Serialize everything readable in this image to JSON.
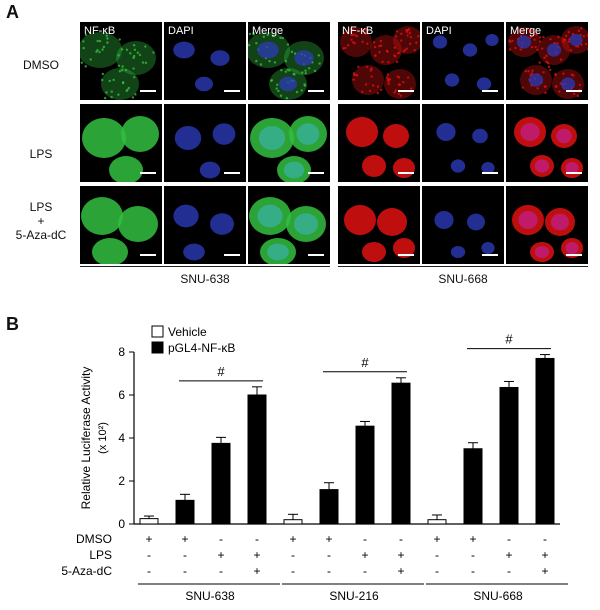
{
  "panel_a": {
    "letter": "A",
    "row_labels": [
      "DMSO",
      "LPS",
      "LPS\n+\n5-Aza-dC"
    ],
    "channel_labels": [
      "NF-κB",
      "DAPI",
      "Merge",
      "NF-κB",
      "DAPI",
      "Merge"
    ],
    "cell_lines": [
      "SNU-638",
      "SNU-668"
    ]
  },
  "panel_b": {
    "letter": "B",
    "legend": [
      {
        "label": "Vehicle",
        "color": "#ffffff"
      },
      {
        "label": "pGL4-NF-κB",
        "color": "#000000"
      }
    ],
    "ylabel_line1": "Relative Luciferase Activity",
    "ylabel_line2": "(x 10²)",
    "row_labels": [
      "DMSO",
      "LPS",
      "5-Aza-dC"
    ],
    "significance_mark": "#"
  },
  "chart_data": {
    "type": "bar",
    "ylim": [
      0,
      8
    ],
    "yticks": [
      0,
      2,
      4,
      6,
      8
    ],
    "groups": [
      {
        "name": "SNU-638",
        "values": [
          0.25,
          1.1,
          3.75,
          6.0
        ],
        "errors": [
          0.12,
          0.28,
          0.28,
          0.38
        ]
      },
      {
        "name": "SNU-216",
        "values": [
          0.2,
          1.6,
          4.55,
          6.55
        ],
        "errors": [
          0.25,
          0.32,
          0.22,
          0.25
        ]
      },
      {
        "name": "SNU-668",
        "values": [
          0.2,
          3.5,
          6.35,
          7.7
        ],
        "errors": [
          0.22,
          0.28,
          0.28,
          0.18
        ]
      }
    ],
    "bar_fill": [
      "vehicle",
      "reporter",
      "reporter",
      "reporter"
    ],
    "conditions": {
      "DMSO": [
        "+",
        "+",
        "-",
        "-"
      ],
      "LPS": [
        "-",
        "-",
        "+",
        "+"
      ],
      "5-Aza-dC": [
        "-",
        "-",
        "-",
        "+"
      ]
    }
  }
}
